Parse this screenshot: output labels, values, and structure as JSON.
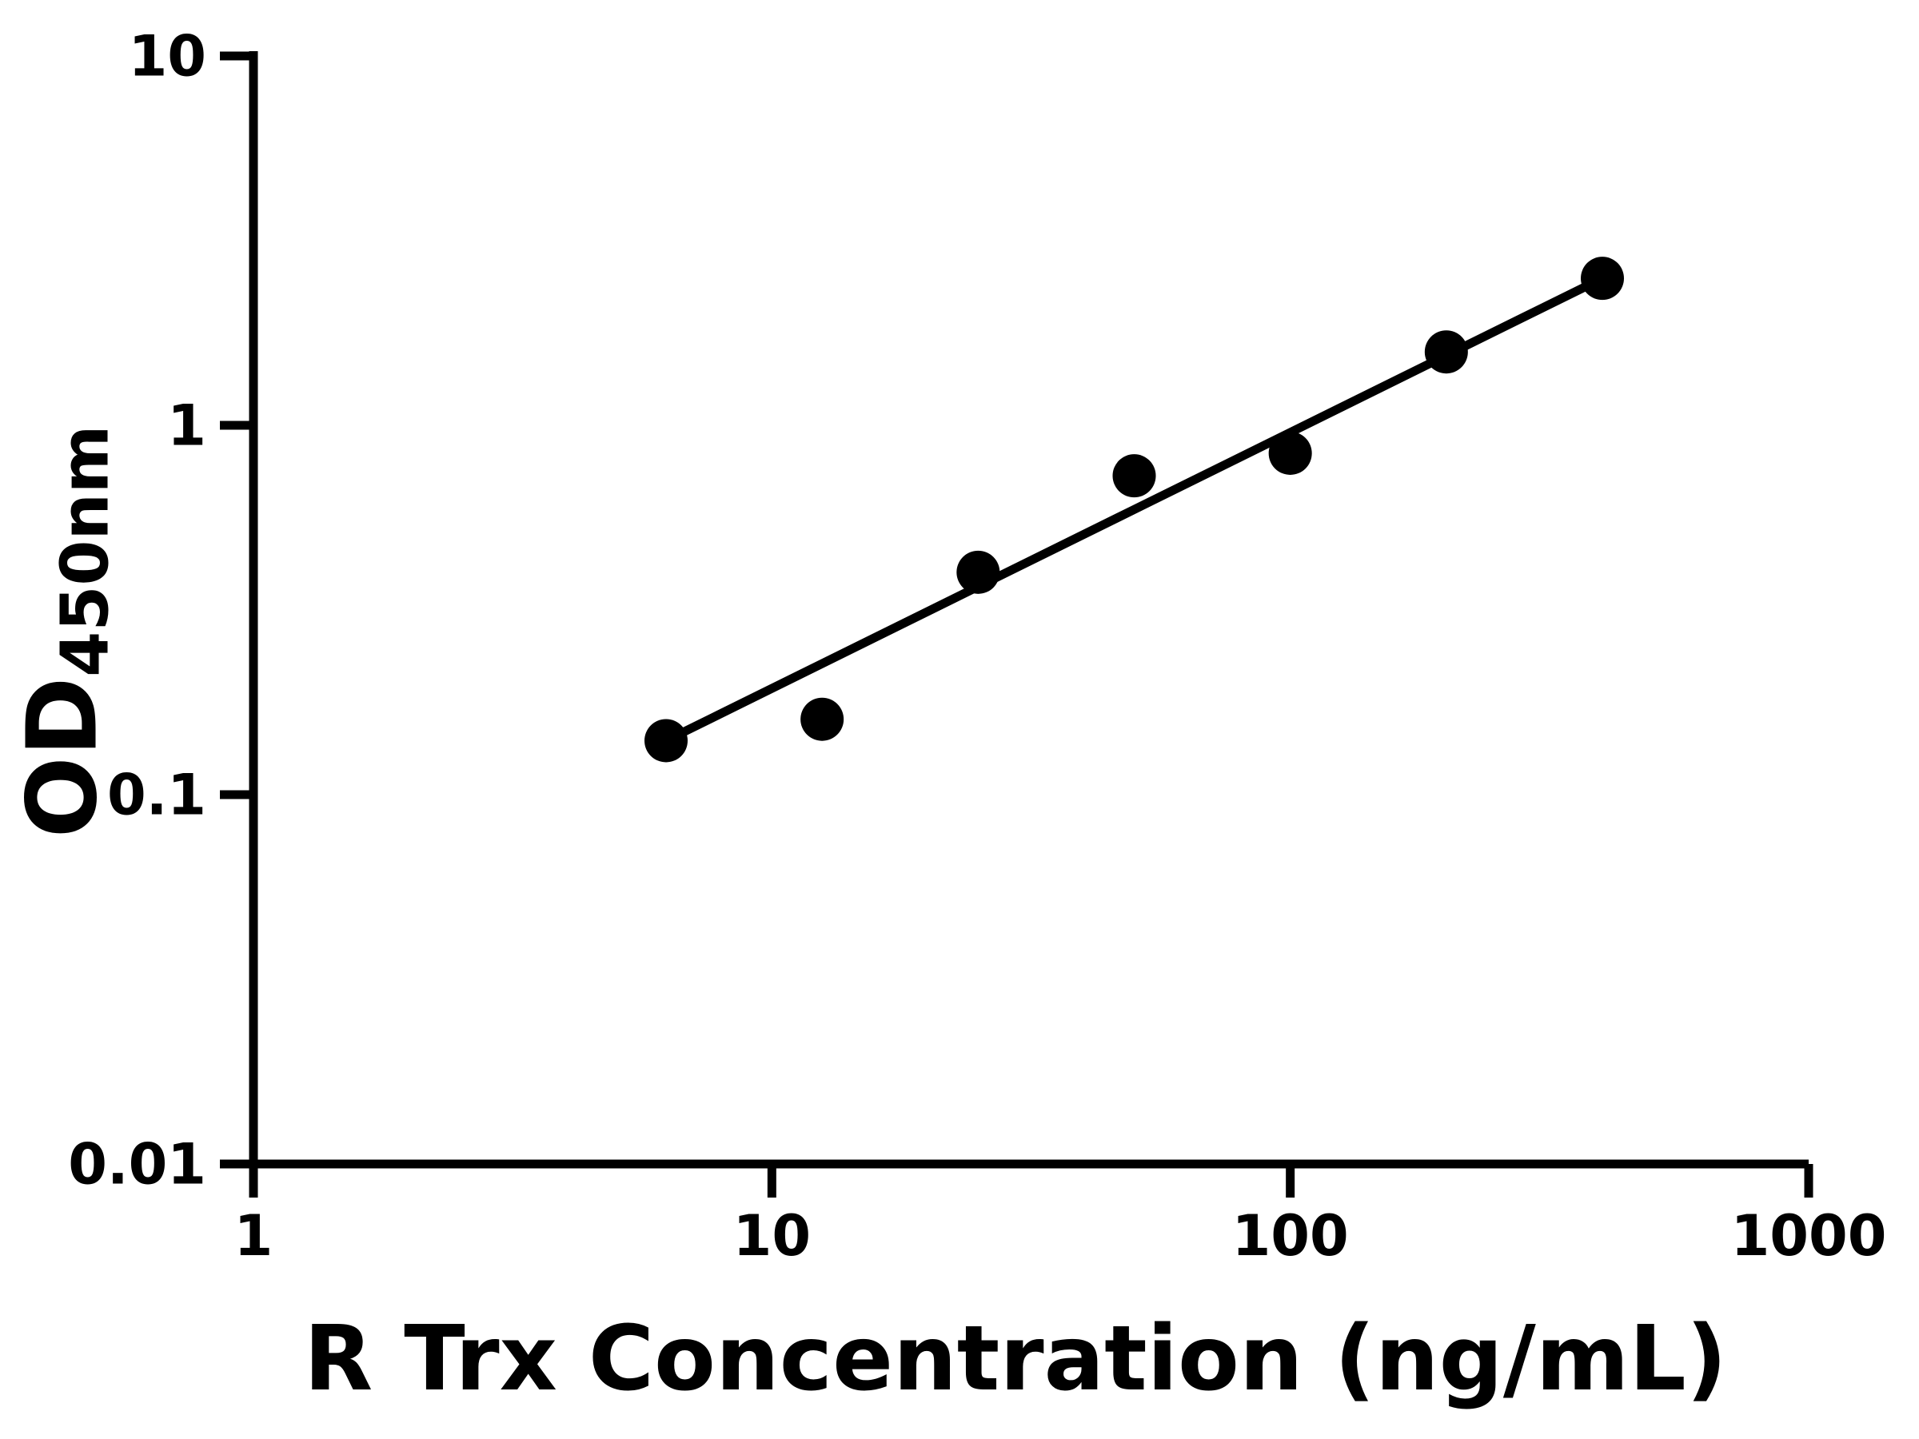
{
  "page": {
    "background_color": "#ffffff",
    "foreground_color": "#000000"
  },
  "chart_data": {
    "type": "scatter",
    "title": "",
    "xlabel": "R Trx Concentration (ng/mL)",
    "ylabel_main": "OD",
    "ylabel_subscript": "450nm",
    "x_scale": "log",
    "y_scale": "log",
    "xlim": [
      1,
      1000
    ],
    "ylim": [
      0.01,
      10
    ],
    "grid": false,
    "legend": false,
    "x_ticks": [
      {
        "value": 1,
        "label": "1"
      },
      {
        "value": 10,
        "label": "10"
      },
      {
        "value": 100,
        "label": "100"
      },
      {
        "value": 1000,
        "label": "1000"
      }
    ],
    "y_ticks": [
      {
        "value": 10,
        "label": "10"
      },
      {
        "value": 1,
        "label": "1"
      },
      {
        "value": 0.1,
        "label": "0.1"
      },
      {
        "value": 0.01,
        "label": "0.01"
      }
    ],
    "series": [
      {
        "name": "standard-curve-points",
        "marker": "circle",
        "color": "#000000",
        "points": [
          {
            "x": 6.25,
            "y": 0.14
          },
          {
            "x": 12.5,
            "y": 0.16
          },
          {
            "x": 25,
            "y": 0.4
          },
          {
            "x": 50,
            "y": 0.73
          },
          {
            "x": 100,
            "y": 0.84
          },
          {
            "x": 200,
            "y": 1.58
          },
          {
            "x": 400,
            "y": 2.5
          }
        ]
      }
    ],
    "trendline": {
      "type": "power-fit",
      "color": "#000000",
      "x1": 6.25,
      "y1": 0.14,
      "x2": 400,
      "y2": 2.5
    }
  }
}
